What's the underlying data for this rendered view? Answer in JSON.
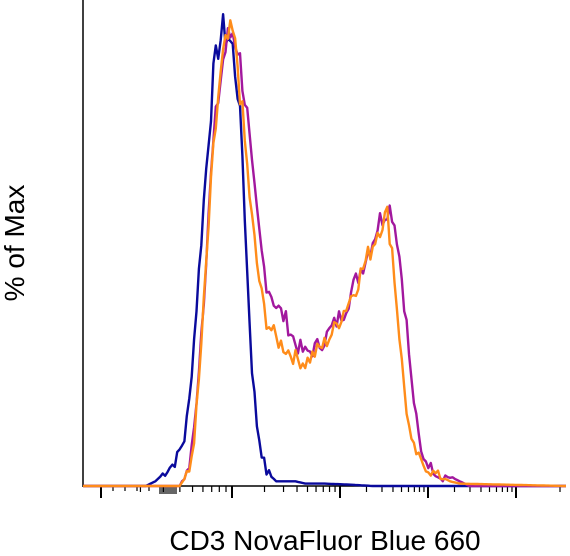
{
  "chart_data": {
    "type": "line",
    "title": "",
    "xlabel": "CD3 NovaFluor Blue 660",
    "ylabel": "% of Max",
    "x_scale": "log",
    "x_ticks": "unlabeled",
    "xlim": [
      0,
      100
    ],
    "ylim": [
      0,
      100
    ],
    "grid": false,
    "legend": "none",
    "series": [
      {
        "color": "#0a0a9c",
        "x": [
          0,
          10,
          13,
          15,
          17,
          19,
          21,
          22,
          23,
          24,
          25,
          26,
          27,
          28,
          29,
          30,
          31,
          32,
          33,
          34,
          35,
          36,
          37,
          38,
          39,
          40,
          42,
          44,
          46,
          50,
          55,
          60,
          100
        ],
        "y": [
          0,
          0,
          0,
          1,
          3,
          5,
          10,
          18,
          31,
          45,
          60,
          74,
          86,
          93,
          96,
          95,
          92,
          84,
          70,
          45,
          25,
          13,
          7,
          3,
          2,
          1,
          1,
          1,
          0.5,
          0.5,
          0.3,
          0,
          0
        ]
      },
      {
        "color": "#a2189e",
        "x": [
          0,
          20,
          22,
          23,
          24,
          25,
          26,
          27,
          28,
          29,
          30,
          31,
          32,
          33,
          34,
          35,
          36,
          37,
          38,
          40,
          42,
          44,
          46,
          48,
          50,
          52,
          54,
          56,
          58,
          60,
          61,
          62,
          63,
          64,
          65,
          66,
          67,
          68,
          69,
          70,
          72,
          74,
          76,
          78,
          80,
          100
        ],
        "y": [
          0,
          0,
          4,
          12,
          25,
          40,
          58,
          72,
          82,
          90,
          94,
          96,
          93,
          86,
          78,
          66,
          57,
          49,
          43,
          38,
          35,
          30,
          28,
          29,
          31,
          34,
          37,
          42,
          47,
          52,
          55,
          57,
          59,
          58,
          53,
          44,
          34,
          22,
          14,
          7,
          4,
          2,
          2,
          1,
          0,
          0
        ]
      },
      {
        "color": "#ff8c1a",
        "x": [
          0,
          20,
          22,
          23,
          24,
          25,
          26,
          27,
          28,
          29,
          30,
          31,
          32,
          33,
          34,
          35,
          36,
          37,
          38,
          40,
          42,
          44,
          46,
          48,
          50,
          52,
          54,
          56,
          58,
          60,
          61,
          62,
          63,
          64,
          65,
          66,
          67,
          68,
          70,
          72,
          74,
          76,
          78,
          100
        ],
        "y": [
          0,
          0,
          3,
          10,
          22,
          38,
          55,
          70,
          82,
          90,
          94,
          95,
          89,
          78,
          67,
          56,
          47,
          40,
          35,
          31,
          29,
          27,
          26,
          28,
          30,
          33,
          37,
          41,
          46,
          51,
          54,
          56,
          57,
          50,
          38,
          26,
          16,
          9,
          5,
          3,
          2,
          1,
          0.5,
          0
        ]
      }
    ]
  }
}
